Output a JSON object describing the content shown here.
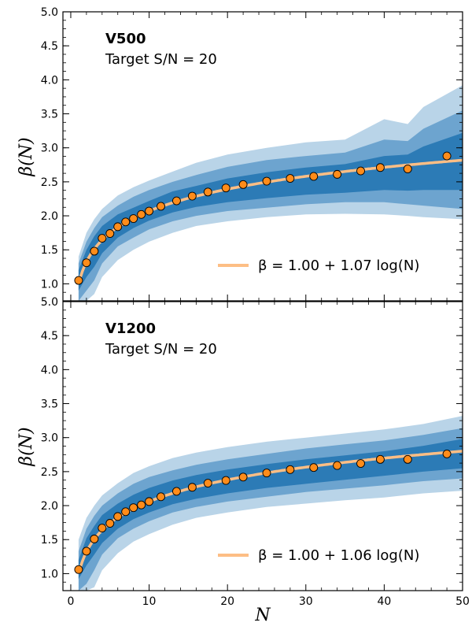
{
  "colors": {
    "band_outer": "#b9d4e8",
    "band_mid": "#6da4cf",
    "band_inner": "#2c7bb6",
    "fit_line": "#fdbe85",
    "marker_fill": "#ff8c1a",
    "marker_edge": "#000000"
  },
  "chart_data": [
    {
      "type": "line",
      "title": "V500",
      "subtitle": "Target S/N = 20",
      "xlabel": "",
      "ylabel": "β(N)",
      "xlim": [
        -1,
        50
      ],
      "ylim": [
        0.75,
        5.0
      ],
      "x_ticks": [
        0,
        10,
        20,
        30,
        40,
        50
      ],
      "y_ticks": [
        1.0,
        1.5,
        2.0,
        2.5,
        3.0,
        3.5,
        4.0,
        4.5,
        5.0
      ],
      "y_tick_labels": [
        "1.0",
        "1.5",
        "2.0",
        "2.5",
        "3.0",
        "3.5",
        "4.0",
        "4.5",
        "5.0"
      ],
      "legend": {
        "position": "bottom-right",
        "label": "β = 1.00 + 1.07 log(N)"
      },
      "fit": {
        "a": 1.0,
        "b": 1.07
      },
      "points": {
        "x": [
          1,
          2,
          3,
          4,
          5,
          6,
          7,
          8,
          9,
          10,
          11.5,
          13.5,
          15.5,
          17.5,
          19.8,
          22,
          25,
          28,
          31,
          34,
          37,
          39.5,
          43,
          48
        ],
        "y": [
          1.05,
          1.31,
          1.48,
          1.67,
          1.74,
          1.84,
          1.91,
          1.96,
          2.02,
          2.07,
          2.14,
          2.22,
          2.29,
          2.35,
          2.41,
          2.46,
          2.51,
          2.55,
          2.58,
          2.61,
          2.66,
          2.71,
          2.69,
          2.88
        ]
      },
      "bands": {
        "x": [
          1,
          2,
          3,
          4,
          6,
          8,
          10,
          13,
          16,
          20,
          25,
          30,
          35,
          40,
          43,
          45,
          50
        ],
        "outer_low": [
          0.75,
          0.75,
          0.85,
          1.1,
          1.35,
          1.5,
          1.62,
          1.75,
          1.85,
          1.92,
          1.98,
          2.02,
          2.03,
          2.02,
          2.0,
          1.98,
          1.95
        ],
        "outer_high": [
          1.4,
          1.75,
          1.95,
          2.1,
          2.3,
          2.42,
          2.52,
          2.65,
          2.78,
          2.9,
          3.0,
          3.08,
          3.12,
          3.42,
          3.35,
          3.6,
          3.92
        ],
        "mid_low": [
          0.75,
          0.9,
          1.05,
          1.3,
          1.55,
          1.68,
          1.8,
          1.92,
          2.0,
          2.07,
          2.12,
          2.17,
          2.2,
          2.2,
          2.17,
          2.15,
          2.1
        ],
        "mid_high": [
          1.3,
          1.62,
          1.82,
          1.98,
          2.15,
          2.28,
          2.38,
          2.5,
          2.6,
          2.72,
          2.82,
          2.88,
          2.93,
          3.12,
          3.1,
          3.28,
          3.55
        ],
        "inner_low": [
          0.9,
          1.1,
          1.25,
          1.45,
          1.68,
          1.82,
          1.93,
          2.05,
          2.13,
          2.2,
          2.26,
          2.31,
          2.34,
          2.38,
          2.37,
          2.38,
          2.38
        ],
        "inner_high": [
          1.2,
          1.5,
          1.7,
          1.85,
          2.02,
          2.12,
          2.22,
          2.36,
          2.44,
          2.55,
          2.64,
          2.71,
          2.76,
          2.88,
          2.9,
          3.02,
          3.22
        ]
      }
    },
    {
      "type": "line",
      "title": "V1200",
      "subtitle": "Target S/N = 20",
      "xlabel": "N",
      "ylabel": "β(N)",
      "xlim": [
        -1,
        50
      ],
      "ylim": [
        0.75,
        5.0
      ],
      "x_ticks": [
        0,
        10,
        20,
        30,
        40,
        50
      ],
      "x_tick_labels": [
        "0",
        "10",
        "20",
        "30",
        "40",
        "50"
      ],
      "y_ticks": [
        1.0,
        1.5,
        2.0,
        2.5,
        3.0,
        3.5,
        4.0,
        4.5,
        5.0
      ],
      "y_tick_labels": [
        "1.0",
        "1.5",
        "2.0",
        "2.5",
        "3.0",
        "3.5",
        "4.0",
        "4.5",
        "5.0"
      ],
      "legend": {
        "position": "bottom-right",
        "label": "β = 1.00 + 1.06 log(N)"
      },
      "fit": {
        "a": 1.0,
        "b": 1.06
      },
      "points": {
        "x": [
          1,
          2,
          3,
          4,
          5,
          6,
          7,
          8,
          9,
          10,
          11.5,
          13.5,
          15.5,
          17.5,
          19.8,
          22,
          25,
          28,
          31,
          34,
          37,
          39.5,
          43,
          48
        ],
        "y": [
          1.06,
          1.33,
          1.51,
          1.67,
          1.74,
          1.84,
          1.91,
          1.97,
          2.01,
          2.06,
          2.13,
          2.21,
          2.27,
          2.33,
          2.37,
          2.42,
          2.48,
          2.53,
          2.56,
          2.59,
          2.62,
          2.68,
          2.68,
          2.76
        ]
      },
      "bands": {
        "x": [
          1,
          2,
          3,
          4,
          6,
          8,
          10,
          13,
          16,
          20,
          25,
          30,
          35,
          40,
          45,
          50
        ],
        "outer_low": [
          0.75,
          0.75,
          0.8,
          1.05,
          1.3,
          1.47,
          1.58,
          1.72,
          1.82,
          1.9,
          1.98,
          2.03,
          2.08,
          2.12,
          2.18,
          2.22
        ],
        "outer_high": [
          1.5,
          1.82,
          2.0,
          2.15,
          2.33,
          2.48,
          2.58,
          2.7,
          2.78,
          2.86,
          2.94,
          3.0,
          3.06,
          3.12,
          3.2,
          3.32
        ],
        "mid_low": [
          0.75,
          0.85,
          1.05,
          1.28,
          1.52,
          1.66,
          1.77,
          1.9,
          1.98,
          2.06,
          2.13,
          2.2,
          2.25,
          2.3,
          2.36,
          2.4
        ],
        "mid_high": [
          1.33,
          1.66,
          1.85,
          2.0,
          2.18,
          2.32,
          2.42,
          2.52,
          2.6,
          2.68,
          2.76,
          2.84,
          2.9,
          2.96,
          3.04,
          3.14
        ],
        "inner_low": [
          0.92,
          1.12,
          1.28,
          1.45,
          1.66,
          1.8,
          1.9,
          2.02,
          2.1,
          2.18,
          2.26,
          2.32,
          2.38,
          2.44,
          2.5,
          2.55
        ],
        "inner_high": [
          1.2,
          1.52,
          1.7,
          1.86,
          2.03,
          2.16,
          2.26,
          2.37,
          2.45,
          2.53,
          2.61,
          2.68,
          2.74,
          2.8,
          2.88,
          2.98
        ]
      }
    }
  ]
}
